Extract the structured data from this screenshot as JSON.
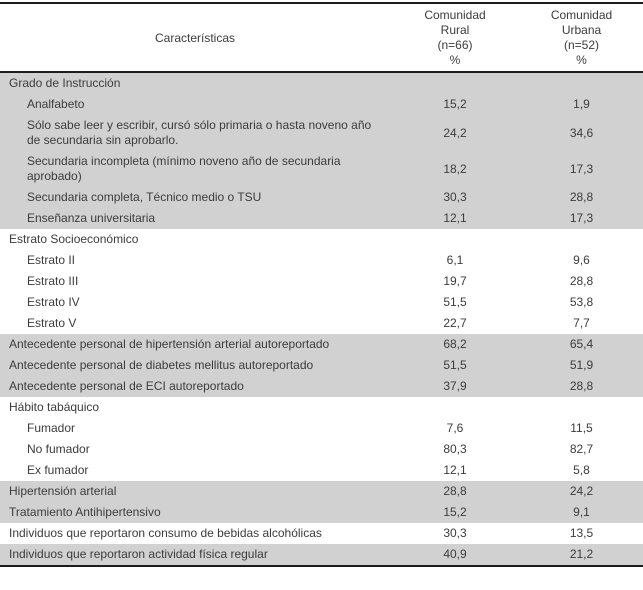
{
  "table": {
    "header": {
      "col1": "Características",
      "col2": "Comunidad\nRural\n(n=66)\n%",
      "col3": "Comunidad\nUrbana\n(n=52)\n%"
    },
    "rows": [
      {
        "label": "Grado de Instrucción",
        "rural": "",
        "urbana": "",
        "indent": false,
        "shaded": true
      },
      {
        "label": "Analfabeto",
        "rural": "15,2",
        "urbana": "1,9",
        "indent": true,
        "shaded": true
      },
      {
        "label": "Sólo sabe leer y escribir, cursó sólo primaria o hasta noveno año de secundaria sin aprobarlo.",
        "rural": "24,2",
        "urbana": "34,6",
        "indent": true,
        "shaded": true
      },
      {
        "label": "Secundaria incompleta (mínimo noveno año de secundaria aprobado)",
        "rural": "18,2",
        "urbana": "17,3",
        "indent": true,
        "shaded": true
      },
      {
        "label": "Secundaria completa, Técnico medio o TSU",
        "rural": "30,3",
        "urbana": "28,8",
        "indent": true,
        "shaded": true
      },
      {
        "label": "Enseñanza universitaria",
        "rural": "12,1",
        "urbana": "17,3",
        "indent": true,
        "shaded": true
      },
      {
        "label": "Estrato Socioeconómico",
        "rural": "",
        "urbana": "",
        "indent": false,
        "shaded": false
      },
      {
        "label": "Estrato II",
        "rural": "6,1",
        "urbana": "9,6",
        "indent": true,
        "shaded": false
      },
      {
        "label": "Estrato III",
        "rural": "19,7",
        "urbana": "28,8",
        "indent": true,
        "shaded": false
      },
      {
        "label": "Estrato IV",
        "rural": "51,5",
        "urbana": "53,8",
        "indent": true,
        "shaded": false
      },
      {
        "label": "Estrato V",
        "rural": "22,7",
        "urbana": "7,7",
        "indent": true,
        "shaded": false
      },
      {
        "label": "Antecedente personal de hipertensión arterial autoreportado",
        "rural": "68,2",
        "urbana": "65,4",
        "indent": false,
        "shaded": true
      },
      {
        "label": "Antecedente personal de diabetes mellitus autoreportado",
        "rural": "51,5",
        "urbana": "51,9",
        "indent": false,
        "shaded": true
      },
      {
        "label": "Antecedente personal de ECI autoreportado",
        "rural": "37,9",
        "urbana": "28,8",
        "indent": false,
        "shaded": true
      },
      {
        "label": "Hábito tabáquico",
        "rural": "",
        "urbana": "",
        "indent": false,
        "shaded": false
      },
      {
        "label": "Fumador",
        "rural": "7,6",
        "urbana": "11,5",
        "indent": true,
        "shaded": false
      },
      {
        "label": "No fumador",
        "rural": "80,3",
        "urbana": "82,7",
        "indent": true,
        "shaded": false
      },
      {
        "label": "Ex fumador",
        "rural": "12,1",
        "urbana": "5,8",
        "indent": true,
        "shaded": false
      },
      {
        "label": "Hipertensión arterial",
        "rural": "28,8",
        "urbana": "24,2",
        "indent": false,
        "shaded": true
      },
      {
        "label": "Tratamiento Antihipertensivo",
        "rural": "15,2",
        "urbana": "9,1",
        "indent": false,
        "shaded": true
      },
      {
        "label": "Individuos que reportaron consumo de bebidas alcohólicas",
        "rural": "30,3",
        "urbana": "13,5",
        "indent": false,
        "shaded": false
      },
      {
        "label": "Individuos  que reportaron actividad física regular",
        "rural": "40,9",
        "urbana": "21,2",
        "indent": false,
        "shaded": true
      }
    ]
  }
}
